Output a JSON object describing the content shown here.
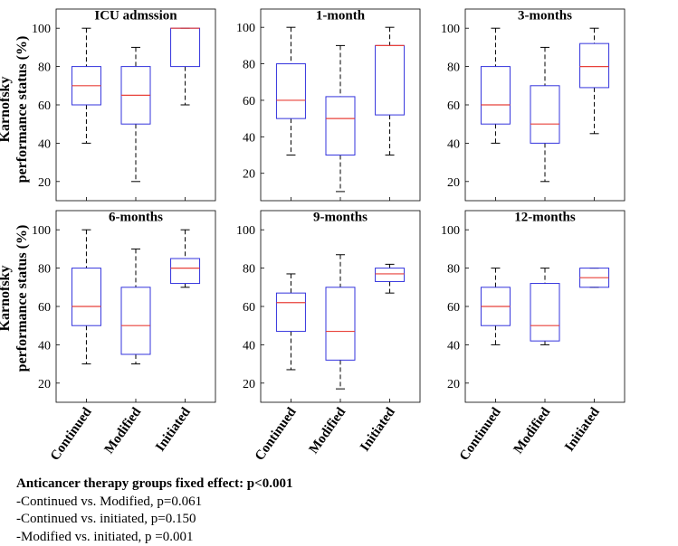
{
  "colors": {
    "box": "#3333dd",
    "median": "#e8413a",
    "whisker": "#000000",
    "axis": "#000000"
  },
  "y_axis_label": [
    "Karnofsky",
    "performance status (%)"
  ],
  "x_categories": [
    "Continued",
    "Modified",
    "Initiated"
  ],
  "chart_data": [
    {
      "type": "box",
      "title": "ICU admssion",
      "ylim": [
        10,
        110
      ],
      "yticks": [
        20,
        40,
        60,
        80,
        100
      ],
      "categories": [
        "Continued",
        "Modified",
        "Initiated"
      ],
      "boxes": [
        {
          "min": 40,
          "q1": 60,
          "median": 70,
          "q3": 80,
          "max": 100
        },
        {
          "min": 20,
          "q1": 50,
          "median": 65,
          "q3": 80,
          "max": 90
        },
        {
          "min": 60,
          "q1": 80,
          "median": 100,
          "q3": 100,
          "max": 100
        }
      ]
    },
    {
      "type": "box",
      "title": "1-month",
      "ylim": [
        5,
        110
      ],
      "yticks": [
        20,
        40,
        60,
        80,
        100
      ],
      "categories": [
        "Continued",
        "Modified",
        "Initiated"
      ],
      "boxes": [
        {
          "min": 30,
          "q1": 50,
          "median": 60,
          "q3": 80,
          "max": 100
        },
        {
          "min": 10,
          "q1": 30,
          "median": 50,
          "q3": 62,
          "max": 90
        },
        {
          "min": 30,
          "q1": 52,
          "median": 90,
          "q3": 90,
          "max": 100
        }
      ]
    },
    {
      "type": "box",
      "title": "3-months",
      "ylim": [
        10,
        110
      ],
      "yticks": [
        20,
        40,
        60,
        80,
        100
      ],
      "categories": [
        "Continued",
        "Modified",
        "Initiated"
      ],
      "boxes": [
        {
          "min": 40,
          "q1": 50,
          "median": 60,
          "q3": 80,
          "max": 100
        },
        {
          "min": 20,
          "q1": 40,
          "median": 50,
          "q3": 70,
          "max": 90
        },
        {
          "min": 45,
          "q1": 69,
          "median": 80,
          "q3": 92,
          "max": 100
        }
      ]
    },
    {
      "type": "box",
      "title": "6-months",
      "ylim": [
        10,
        110
      ],
      "yticks": [
        20,
        40,
        60,
        80,
        100
      ],
      "categories": [
        "Continued",
        "Modified",
        "Initiated"
      ],
      "boxes": [
        {
          "min": 30,
          "q1": 50,
          "median": 60,
          "q3": 80,
          "max": 100
        },
        {
          "min": 30,
          "q1": 35,
          "median": 50,
          "q3": 70,
          "max": 90
        },
        {
          "min": 70,
          "q1": 72,
          "median": 80,
          "q3": 85,
          "max": 100
        }
      ]
    },
    {
      "type": "box",
      "title": "9-months",
      "ylim": [
        10,
        110
      ],
      "yticks": [
        20,
        40,
        60,
        80,
        100
      ],
      "categories": [
        "Continued",
        "Modified",
        "Initiated"
      ],
      "boxes": [
        {
          "min": 27,
          "q1": 47,
          "median": 62,
          "q3": 67,
          "max": 77
        },
        {
          "min": 17,
          "q1": 32,
          "median": 47,
          "q3": 70,
          "max": 87
        },
        {
          "min": 67,
          "q1": 73,
          "median": 77,
          "q3": 80,
          "max": 82
        }
      ]
    },
    {
      "type": "box",
      "title": "12-months",
      "ylim": [
        10,
        110
      ],
      "yticks": [
        20,
        40,
        60,
        80,
        100
      ],
      "categories": [
        "Continued",
        "Modified",
        "Initiated"
      ],
      "boxes": [
        {
          "min": 40,
          "q1": 50,
          "median": 60,
          "q3": 70,
          "max": 80
        },
        {
          "min": 40,
          "q1": 42,
          "median": 50,
          "q3": 72,
          "max": 80
        },
        {
          "min": 70,
          "q1": 70,
          "median": 75,
          "q3": 80,
          "max": 80
        }
      ]
    }
  ],
  "notes": {
    "heading": "Anticancer therapy groups fixed effect: p<0.001",
    "lines": [
      "-Continued vs. Modified, p=0.061",
      "-Continued vs. initiated, p=0.150",
      "-Modified vs. initiated, p =0.001"
    ]
  }
}
